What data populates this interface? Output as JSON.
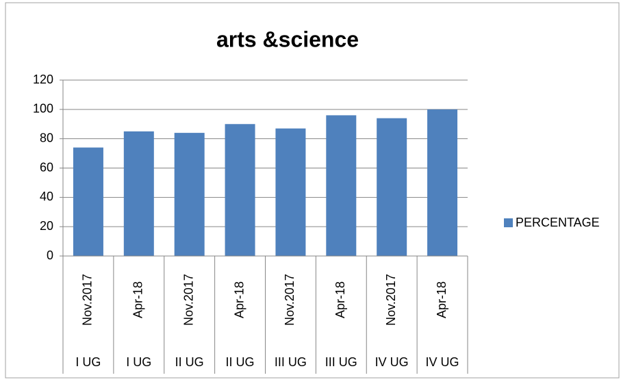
{
  "chart_data": {
    "type": "bar",
    "title": "arts &science",
    "categories": [
      "Nov.2017",
      "Apr-18",
      "Nov.2017",
      "Apr-18",
      "Nov.2017",
      "Apr-18",
      "Nov.2017",
      "Apr-18"
    ],
    "category_groups": [
      "I UG",
      "I UG",
      "II UG",
      "II UG",
      "III UG",
      "III UG",
      "IV UG",
      "IV UG"
    ],
    "series": [
      {
        "name": "PERCENTAGE",
        "color": "#4f81bd",
        "values": [
          74,
          85,
          84,
          90,
          87,
          96,
          94,
          100
        ]
      }
    ],
    "ylim": [
      0,
      120
    ],
    "yticks": [
      0,
      20,
      40,
      60,
      80,
      100,
      120
    ],
    "grid": true,
    "legend": "right"
  }
}
